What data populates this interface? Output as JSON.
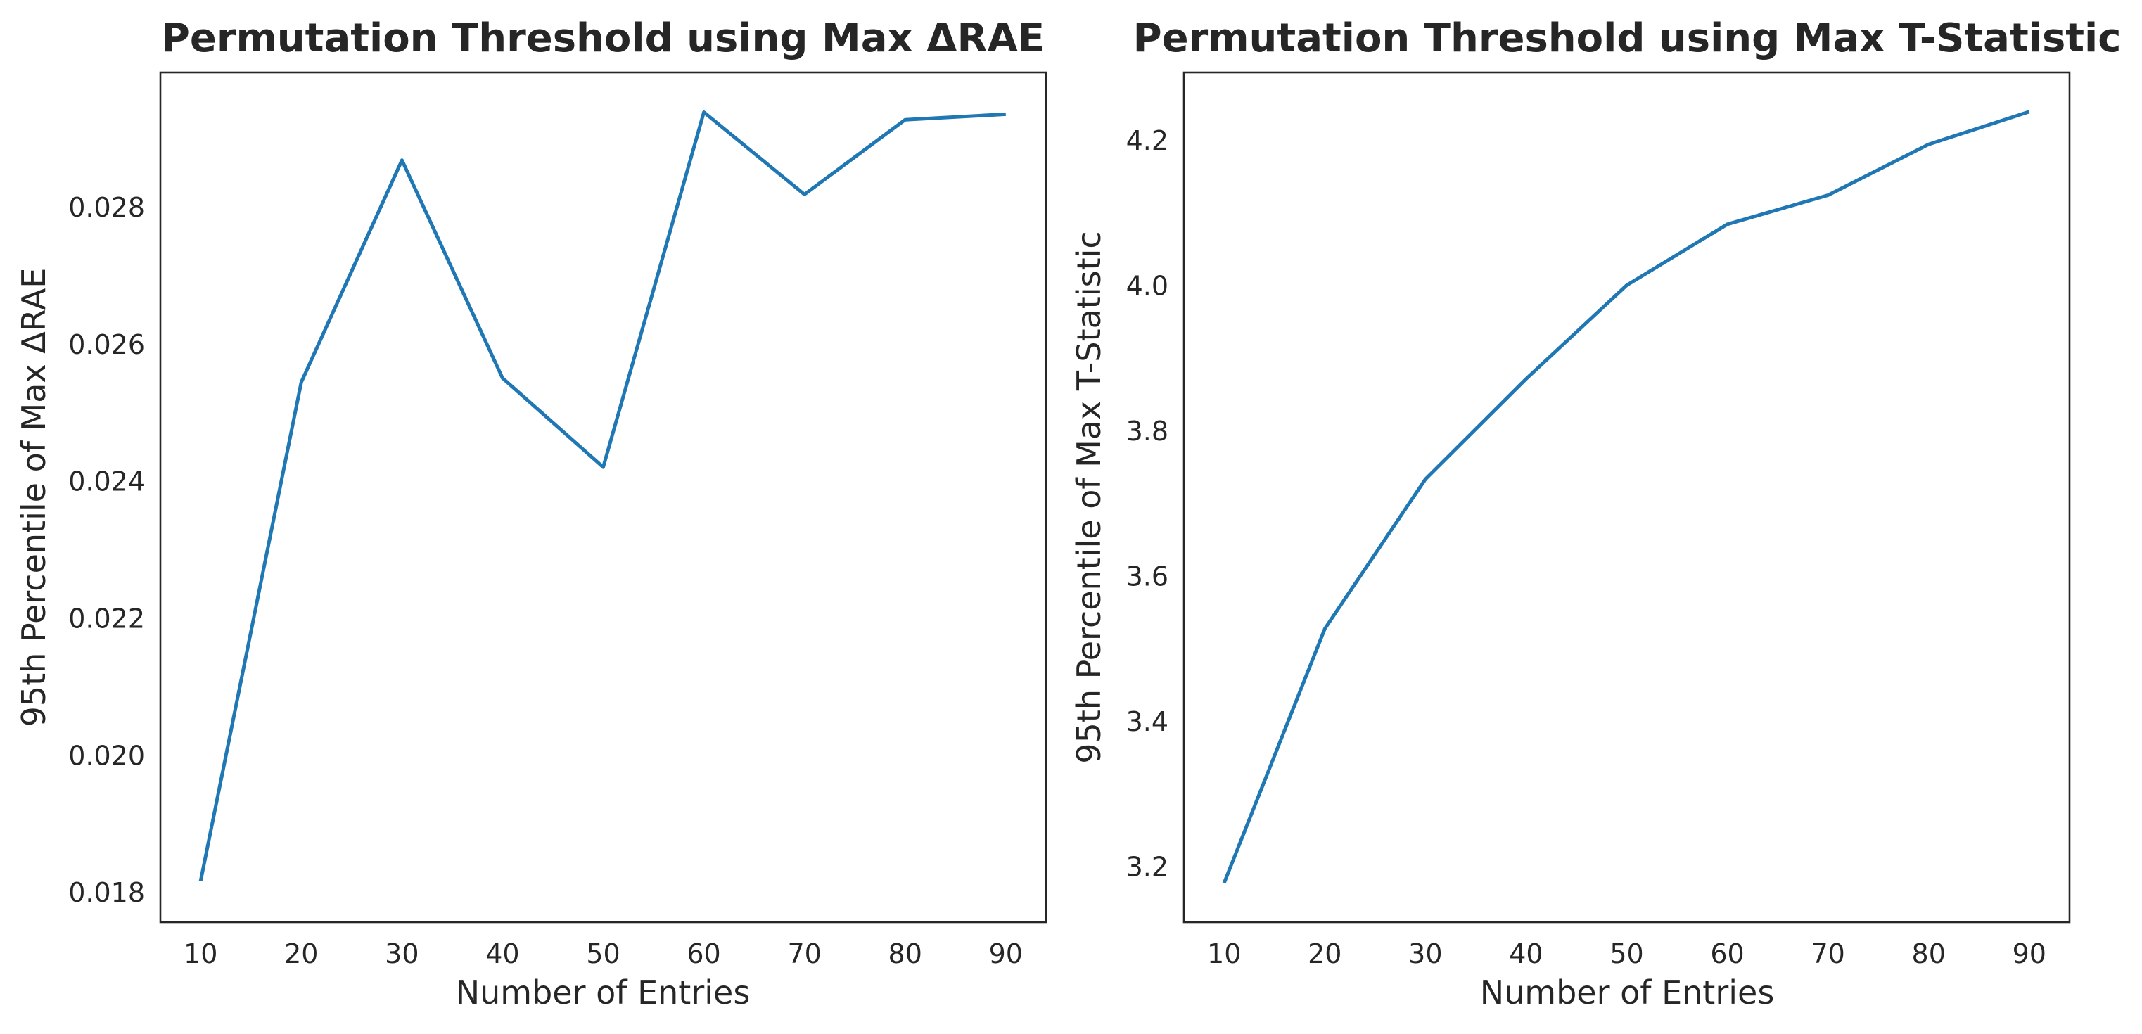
{
  "colors": {
    "series": "#1f77b4",
    "text": "#262626",
    "frame": "#262626",
    "background": "#ffffff"
  },
  "chart_data": [
    {
      "type": "line",
      "title": "Permutation Threshold using Max ΔRAE",
      "xlabel": "Number of Entries",
      "ylabel": "95th Percentile of Max ΔRAE",
      "x": [
        10,
        20,
        30,
        40,
        50,
        60,
        70,
        80,
        90
      ],
      "y": [
        0.01817,
        0.02545,
        0.02869,
        0.02551,
        0.02421,
        0.02939,
        0.02819,
        0.02928,
        0.02936
      ],
      "xlim": [
        6,
        94
      ],
      "ylim": [
        0.01757,
        0.02997
      ],
      "xticks": [
        10,
        20,
        30,
        40,
        50,
        60,
        70,
        80,
        90
      ],
      "yticks": [
        0.018,
        0.02,
        0.022,
        0.024,
        0.026,
        0.028
      ],
      "ytick_labels": [
        "0.018",
        "0.020",
        "0.022",
        "0.024",
        "0.026",
        "0.028"
      ],
      "grid": false,
      "legend": false
    },
    {
      "type": "line",
      "title": "Permutation Threshold using Max T-Statistic",
      "xlabel": "Number of Entries",
      "ylabel": "95th Percentile of Max T-Statistic",
      "x": [
        10,
        20,
        30,
        40,
        50,
        60,
        70,
        80,
        90
      ],
      "y": [
        3.178,
        3.528,
        3.734,
        3.872,
        4.001,
        4.085,
        4.125,
        4.195,
        4.24
      ],
      "xlim": [
        6,
        94
      ],
      "ylim": [
        3.124,
        4.294
      ],
      "xticks": [
        10,
        20,
        30,
        40,
        50,
        60,
        70,
        80,
        90
      ],
      "yticks": [
        3.2,
        3.4,
        3.6,
        3.8,
        4.0,
        4.2
      ],
      "ytick_labels": [
        "3.2",
        "3.4",
        "3.6",
        "3.8",
        "4.0",
        "4.2"
      ],
      "grid": false,
      "legend": false
    }
  ]
}
